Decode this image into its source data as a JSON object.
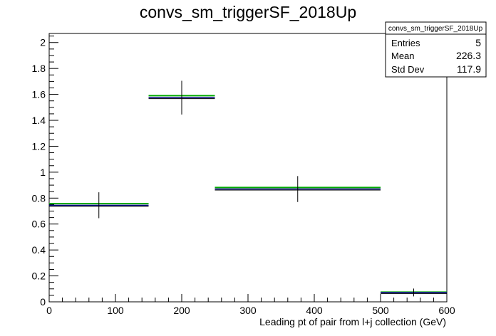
{
  "chart_data": {
    "type": "scatter",
    "title": "convs_sm_triggerSF_2018Up",
    "xlabel": "Leading pt of pair from l+j collection (GeV)",
    "ylabel": "",
    "xlim": [
      0,
      600
    ],
    "ylim": [
      0,
      2.07
    ],
    "x_ticks": [
      "0",
      "100",
      "200",
      "300",
      "400",
      "500",
      "600"
    ],
    "y_ticks": [
      "0",
      "0.2",
      "0.4",
      "0.6",
      "0.8",
      "1",
      "1.2",
      "1.4",
      "1.6",
      "1.8",
      "2"
    ],
    "grid": false,
    "bins": [
      {
        "xlow": 0,
        "xhigh": 150,
        "x": 75,
        "y": 0.745,
        "yerr": 0.1,
        "green": 0.758
      },
      {
        "xlow": 150,
        "xhigh": 250,
        "x": 200,
        "y": 1.575,
        "yerr": 0.13,
        "green": 1.59
      },
      {
        "xlow": 250,
        "xhigh": 500,
        "x": 375,
        "y": 0.87,
        "yerr": 0.1,
        "green": 0.882
      },
      {
        "xlow": 500,
        "xhigh": 600,
        "x": 550,
        "y": 0.072,
        "yerr": 0.03,
        "green": 0.075
      }
    ],
    "colors": {
      "central": "#000080",
      "up": "#00aa00",
      "marker": "#000000"
    },
    "stats_box": {
      "header": "convs_sm_triggerSF_2018Up",
      "rows": [
        {
          "name": "Entries",
          "value": "5"
        },
        {
          "name": "Mean",
          "value": "226.3"
        },
        {
          "name": "Std Dev",
          "value": "117.9"
        }
      ]
    }
  }
}
